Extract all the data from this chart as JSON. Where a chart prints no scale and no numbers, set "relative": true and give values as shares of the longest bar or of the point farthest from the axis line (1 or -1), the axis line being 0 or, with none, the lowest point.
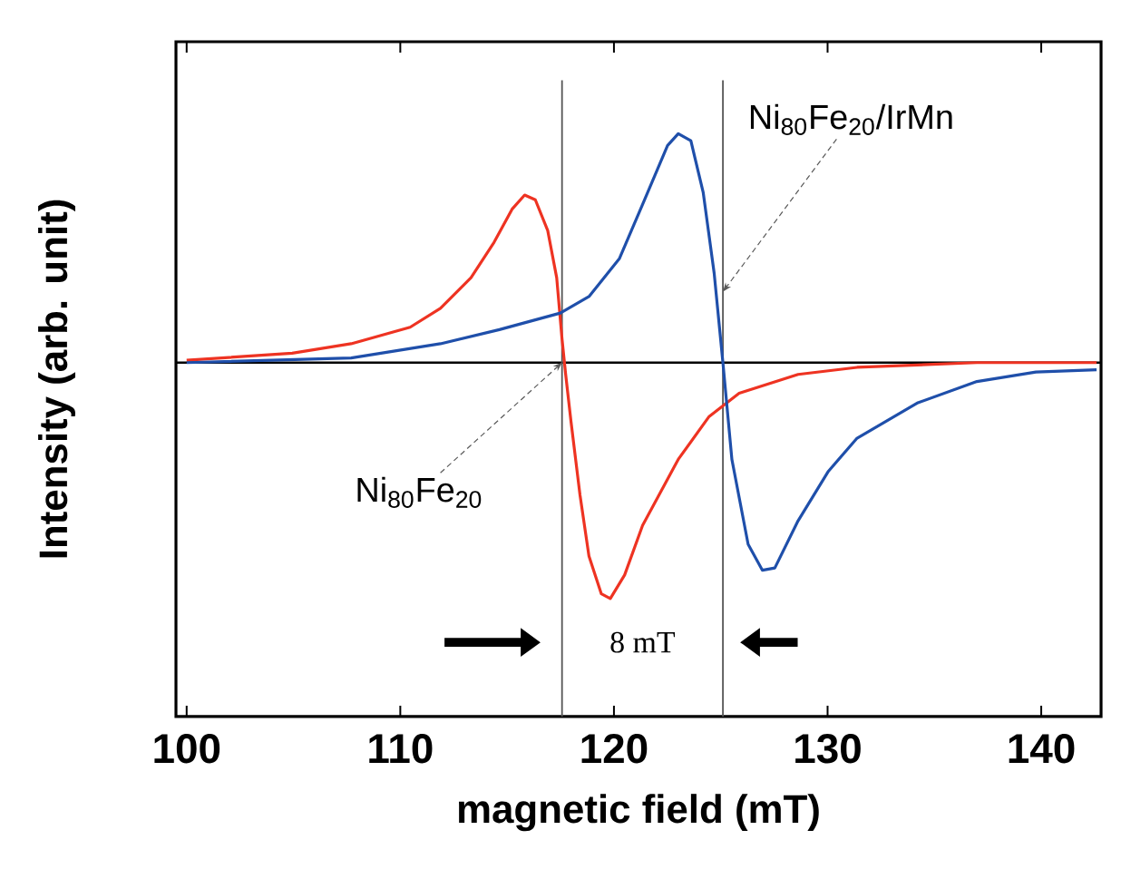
{
  "chart_data": {
    "type": "line",
    "relative": true,
    "xlabel": "magnetic field (mT)",
    "ylabel": "Intensity (arb. unit)",
    "xlim": [
      99.5,
      142.8
    ],
    "xticks": [
      100,
      110,
      120,
      130,
      140
    ],
    "grid": false,
    "marker": "none",
    "line_style": "solid",
    "series": [
      {
        "color": "#ee3322",
        "x": [
          100.0,
          104.94,
          107.7,
          110.46,
          111.88,
          113.31,
          114.39,
          115.23,
          115.82,
          116.32,
          116.9,
          117.32,
          117.57,
          117.74,
          117.99,
          118.41,
          118.83,
          119.41,
          119.83,
          120.5,
          121.34,
          123.01,
          124.44,
          125.86,
          128.62,
          131.38,
          136.99,
          142.59
        ],
        "values": [
          0.01,
          0.04,
          0.08,
          0.15,
          0.23,
          0.36,
          0.51,
          0.65,
          0.71,
          0.69,
          0.56,
          0.36,
          0.1,
          -0.05,
          -0.25,
          -0.56,
          -0.82,
          -0.98,
          -1.0,
          -0.9,
          -0.69,
          -0.41,
          -0.23,
          -0.13,
          -0.05,
          -0.02,
          0.0,
          0.0
        ]
      },
      {
        "color": "#1f4faa",
        "x": [
          100.0,
          107.7,
          111.88,
          114.64,
          117.49,
          118.83,
          120.25,
          121.34,
          122.51,
          123.01,
          123.6,
          124.18,
          124.69,
          125.1,
          125.52,
          126.28,
          126.95,
          127.53,
          128.62,
          130.04,
          131.38,
          134.23,
          136.99,
          139.75,
          142.59
        ],
        "values": [
          0.0,
          0.02,
          0.08,
          0.14,
          0.21,
          0.28,
          0.44,
          0.67,
          0.92,
          0.97,
          0.94,
          0.72,
          0.38,
          0.0,
          -0.41,
          -0.77,
          -0.88,
          -0.87,
          -0.67,
          -0.46,
          -0.32,
          -0.17,
          -0.08,
          -0.04,
          -0.03
        ]
      }
    ],
    "ref_lines": [
      {
        "axis": "x",
        "value": 117.57,
        "color": "#555555"
      },
      {
        "axis": "x",
        "value": 125.1,
        "color": "#555555"
      }
    ],
    "annotations": [
      {
        "text": "Ni$_{80}$Fe$_{20}$",
        "x": 117.57,
        "y": 0.0
      },
      {
        "text": "Ni$_{80}$Fe$_{20}$/IrMn",
        "x": 125.1,
        "y": 0.3
      },
      "8 mT"
    ]
  }
}
